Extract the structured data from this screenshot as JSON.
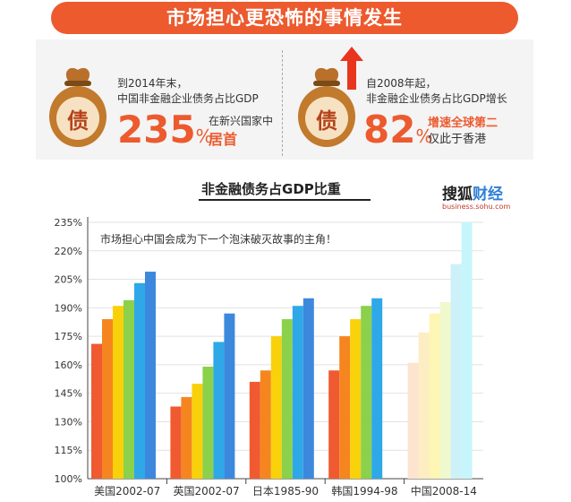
{
  "banner": {
    "title": "市场担心更恐怖的事情发生"
  },
  "facts": [
    {
      "bag_label": "债",
      "line1": "到2014年末，",
      "line2": "中国非金融企业债务占比GDP",
      "value": "235",
      "unit": "%",
      "side1": "在新兴国家中",
      "side2": "居首"
    },
    {
      "bag_label": "债",
      "line1": "自2008年起，",
      "line2": "非金融企业债务占比GDP增长",
      "value": "82",
      "unit": "%",
      "side1": "增速全球第二",
      "side2": "仅此于香港"
    }
  ],
  "logo": {
    "part1": "搜狐",
    "part2": "财经",
    "url": "business.sohu.com"
  },
  "colors": {
    "accent": "#ec5a2e",
    "panel": "#f4f4f4",
    "bars": [
      "#f05a30",
      "#f5861f",
      "#f9d10a",
      "#8bd14b",
      "#2fa8e8",
      "#3c88dd"
    ]
  },
  "chart_data": {
    "type": "bar",
    "title": "非金融债务占GDP比重",
    "annotation": "市场担心中国会成为下一个泡沫破灭故事的主角！",
    "ylim": [
      100,
      235
    ],
    "yticks": [
      "100%",
      "115%",
      "130%",
      "145%",
      "160%",
      "175%",
      "190%",
      "205%",
      "220%",
      "235%"
    ],
    "ytick_values": [
      100,
      115,
      130,
      145,
      160,
      175,
      190,
      205,
      220,
      235
    ],
    "categories": [
      "美国2002-07",
      "英国2002-07",
      "日本1985-90",
      "韩国1994-98",
      "中国2008-14"
    ],
    "groups": [
      [
        171,
        184,
        191,
        194,
        203,
        209
      ],
      [
        138,
        143,
        150,
        159,
        172,
        187
      ],
      [
        151,
        157,
        175,
        184,
        191,
        195
      ],
      [
        157,
        175,
        184,
        191,
        195
      ],
      [
        161,
        177,
        187,
        193,
        213,
        235
      ]
    ],
    "faded_group": 4
  }
}
